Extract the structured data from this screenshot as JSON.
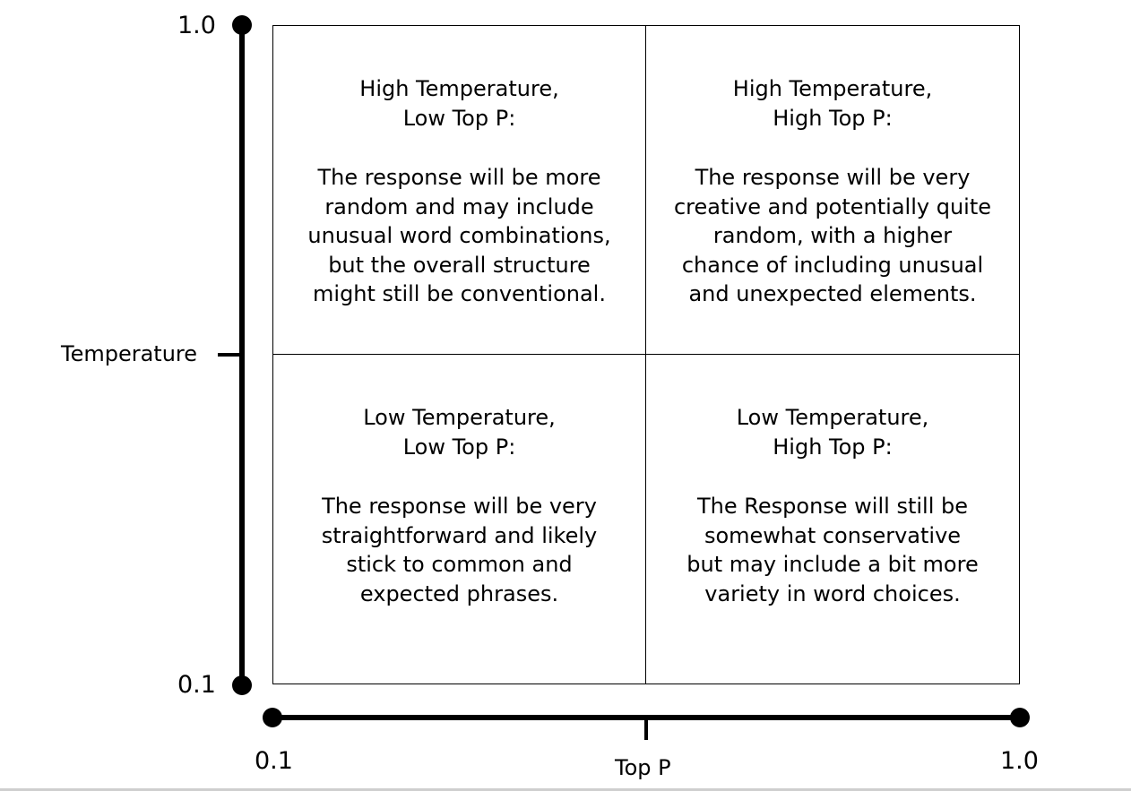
{
  "axes": {
    "y": {
      "label": "Temperature",
      "min_label": "0.1",
      "max_label": "1.0"
    },
    "x": {
      "label": "Top P",
      "min_label": "0.1",
      "max_label": "1.0"
    }
  },
  "quadrants": {
    "top_left": {
      "title": "High Temperature,\nLow Top P:",
      "body": "The response will be more\nrandom and may include\nunusual word combinations,\nbut the overall structure\nmight still be conventional."
    },
    "top_right": {
      "title": "High Temperature,\nHigh Top P:",
      "body": "The response will be very\ncreative and potentially quite\nrandom, with a higher\nchance of including unusual\nand unexpected elements."
    },
    "bottom_left": {
      "title": "Low Temperature,\nLow Top P:",
      "body": "The response will be very\nstraightforward and likely\nstick to common and\nexpected phrases."
    },
    "bottom_right": {
      "title": "Low Temperature,\nHigh Top P:",
      "body": "The Response will still be\nsomewhat conservative\nbut may include a bit more\nvariety in word choices."
    }
  },
  "colors": {
    "line": "#000000",
    "background": "#ffffff"
  }
}
